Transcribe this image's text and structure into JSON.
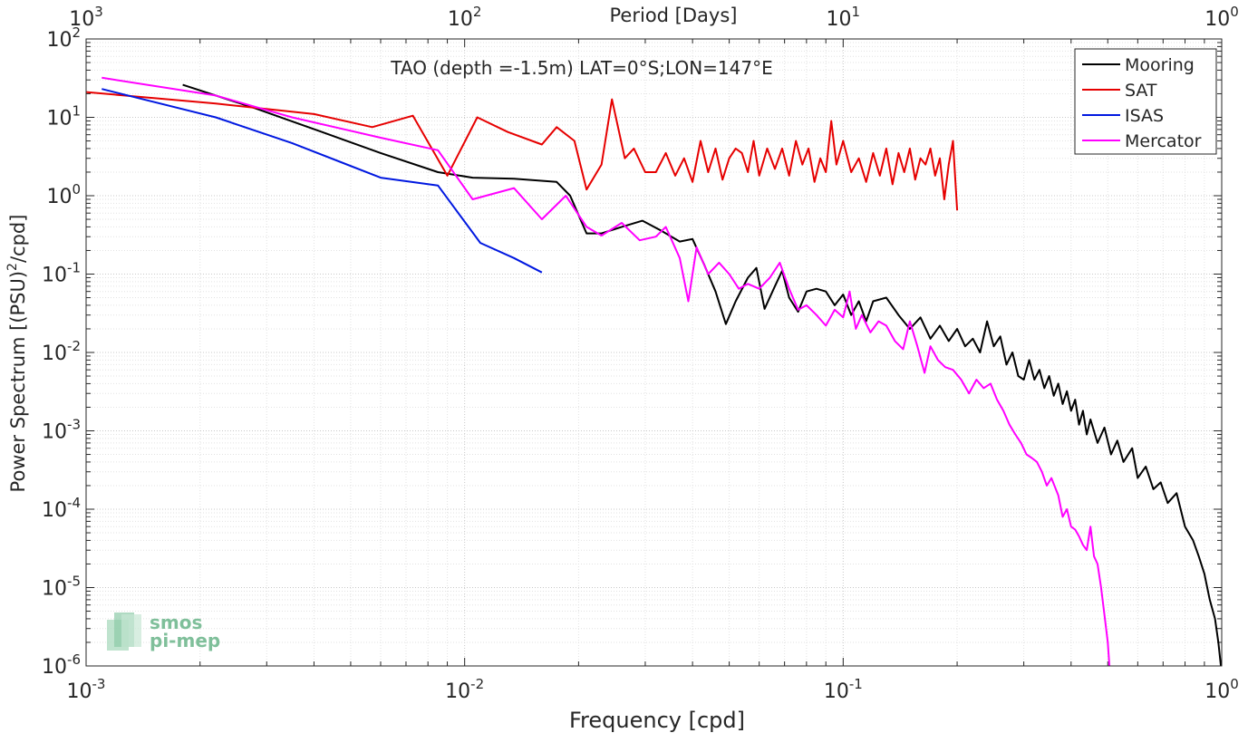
{
  "chart_data": {
    "type": "line",
    "title": "TAO (depth =-1.5m) LAT=0°S;LON=147°E",
    "xlabel": "Frequency [cpd]",
    "ylabel_main": "Power Spectrum [(PSU)",
    "ylabel_sup": "2",
    "ylabel_tail": "/cpd]",
    "top_xlabel": "Period [Days]",
    "xscale": "log",
    "yscale": "log",
    "xlim": [
      0.001,
      1
    ],
    "ylim": [
      1e-06,
      100
    ],
    "grid": true,
    "legend_position": "top-right",
    "x_ticks": [
      {
        "value": 0.001,
        "base": "10",
        "exp": "-3"
      },
      {
        "value": 0.01,
        "base": "10",
        "exp": "-2"
      },
      {
        "value": 0.1,
        "base": "10",
        "exp": "-1"
      },
      {
        "value": 1,
        "base": "10",
        "exp": "0"
      }
    ],
    "top_ticks": [
      {
        "period": 1000,
        "base": "10",
        "exp": "3"
      },
      {
        "period": 100,
        "base": "10",
        "exp": "2"
      },
      {
        "period": 10,
        "base": "10",
        "exp": "1"
      },
      {
        "period": 1,
        "base": "10",
        "exp": "0"
      }
    ],
    "y_ticks": [
      {
        "value": 100,
        "base": "10",
        "exp": "2"
      },
      {
        "value": 10,
        "base": "10",
        "exp": "1"
      },
      {
        "value": 1,
        "base": "10",
        "exp": "0"
      },
      {
        "value": 0.1,
        "base": "10",
        "exp": "-1"
      },
      {
        "value": 0.01,
        "base": "10",
        "exp": "-2"
      },
      {
        "value": 0.001,
        "base": "10",
        "exp": "-3"
      },
      {
        "value": 0.0001,
        "base": "10",
        "exp": "-4"
      },
      {
        "value": 1e-05,
        "base": "10",
        "exp": "-5"
      },
      {
        "value": 1e-06,
        "base": "10",
        "exp": "-6"
      }
    ],
    "logo": {
      "line1": "smos",
      "line2": "pi-mep",
      "color": "#7fbf9a"
    },
    "series": [
      {
        "name": "Mooring",
        "color": "#000000",
        "points": [
          [
            0.0018,
            26
          ],
          [
            0.0028,
            13
          ],
          [
            0.0042,
            6.5
          ],
          [
            0.006,
            3.5
          ],
          [
            0.0085,
            2.0
          ],
          [
            0.0105,
            1.7
          ],
          [
            0.0135,
            1.65
          ],
          [
            0.0175,
            1.5
          ],
          [
            0.019,
            1.0
          ],
          [
            0.021,
            0.33
          ],
          [
            0.023,
            0.33
          ],
          [
            0.026,
            0.4
          ],
          [
            0.0295,
            0.48
          ],
          [
            0.033,
            0.36
          ],
          [
            0.037,
            0.26
          ],
          [
            0.04,
            0.28
          ],
          [
            0.043,
            0.13
          ],
          [
            0.046,
            0.06
          ],
          [
            0.049,
            0.023
          ],
          [
            0.052,
            0.045
          ],
          [
            0.056,
            0.09
          ],
          [
            0.059,
            0.12
          ],
          [
            0.062,
            0.036
          ],
          [
            0.066,
            0.07
          ],
          [
            0.069,
            0.11
          ],
          [
            0.072,
            0.05
          ],
          [
            0.076,
            0.033
          ],
          [
            0.08,
            0.06
          ],
          [
            0.085,
            0.065
          ],
          [
            0.09,
            0.06
          ],
          [
            0.095,
            0.04
          ],
          [
            0.1,
            0.055
          ],
          [
            0.105,
            0.03
          ],
          [
            0.11,
            0.045
          ],
          [
            0.115,
            0.025
          ],
          [
            0.12,
            0.045
          ],
          [
            0.13,
            0.05
          ],
          [
            0.14,
            0.03
          ],
          [
            0.15,
            0.02
          ],
          [
            0.16,
            0.028
          ],
          [
            0.17,
            0.015
          ],
          [
            0.18,
            0.022
          ],
          [
            0.19,
            0.014
          ],
          [
            0.2,
            0.02
          ],
          [
            0.21,
            0.012
          ],
          [
            0.22,
            0.015
          ],
          [
            0.23,
            0.01
          ],
          [
            0.24,
            0.025
          ],
          [
            0.25,
            0.012
          ],
          [
            0.26,
            0.016
          ],
          [
            0.27,
            0.007
          ],
          [
            0.28,
            0.01
          ],
          [
            0.29,
            0.005
          ],
          [
            0.3,
            0.0045
          ],
          [
            0.31,
            0.008
          ],
          [
            0.32,
            0.0045
          ],
          [
            0.33,
            0.006
          ],
          [
            0.34,
            0.0035
          ],
          [
            0.35,
            0.005
          ],
          [
            0.36,
            0.0028
          ],
          [
            0.37,
            0.004
          ],
          [
            0.38,
            0.0022
          ],
          [
            0.39,
            0.0032
          ],
          [
            0.4,
            0.0018
          ],
          [
            0.41,
            0.0025
          ],
          [
            0.42,
            0.0012
          ],
          [
            0.43,
            0.0018
          ],
          [
            0.44,
            0.0009
          ],
          [
            0.45,
            0.0014
          ],
          [
            0.47,
            0.0007
          ],
          [
            0.49,
            0.0011
          ],
          [
            0.51,
            0.0005
          ],
          [
            0.53,
            0.00075
          ],
          [
            0.55,
            0.0004
          ],
          [
            0.58,
            0.0006
          ],
          [
            0.6,
            0.00025
          ],
          [
            0.63,
            0.00035
          ],
          [
            0.66,
            0.00018
          ],
          [
            0.69,
            0.00022
          ],
          [
            0.72,
            0.00012
          ],
          [
            0.76,
            0.00016
          ],
          [
            0.8,
            6e-05
          ],
          [
            0.84,
            4e-05
          ],
          [
            0.87,
            2.5e-05
          ],
          [
            0.9,
            1.5e-05
          ],
          [
            0.93,
            7e-06
          ],
          [
            0.96,
            4e-06
          ],
          [
            0.98,
            2e-06
          ],
          [
            0.995,
            1e-06
          ]
        ]
      },
      {
        "name": "SAT",
        "color": "#e60000",
        "points": [
          [
            0.001,
            21
          ],
          [
            0.0022,
            15
          ],
          [
            0.004,
            11
          ],
          [
            0.0057,
            7.5
          ],
          [
            0.0073,
            10.5
          ],
          [
            0.009,
            1.8
          ],
          [
            0.0108,
            10
          ],
          [
            0.013,
            6.5
          ],
          [
            0.016,
            4.5
          ],
          [
            0.0175,
            7.5
          ],
          [
            0.0195,
            5
          ],
          [
            0.021,
            1.2
          ],
          [
            0.023,
            2.5
          ],
          [
            0.0245,
            17
          ],
          [
            0.0265,
            3
          ],
          [
            0.028,
            4
          ],
          [
            0.03,
            2
          ],
          [
            0.032,
            2
          ],
          [
            0.034,
            3.5
          ],
          [
            0.036,
            1.8
          ],
          [
            0.038,
            3
          ],
          [
            0.04,
            1.5
          ],
          [
            0.042,
            5
          ],
          [
            0.044,
            2
          ],
          [
            0.046,
            4
          ],
          [
            0.048,
            1.6
          ],
          [
            0.05,
            3
          ],
          [
            0.052,
            4
          ],
          [
            0.054,
            3.5
          ],
          [
            0.056,
            2
          ],
          [
            0.058,
            5
          ],
          [
            0.06,
            1.8
          ],
          [
            0.063,
            4
          ],
          [
            0.066,
            2.2
          ],
          [
            0.069,
            4
          ],
          [
            0.072,
            1.8
          ],
          [
            0.075,
            5
          ],
          [
            0.078,
            2.5
          ],
          [
            0.081,
            4
          ],
          [
            0.084,
            1.5
          ],
          [
            0.087,
            3
          ],
          [
            0.09,
            2
          ],
          [
            0.093,
            9
          ],
          [
            0.096,
            2.5
          ],
          [
            0.1,
            5
          ],
          [
            0.105,
            2
          ],
          [
            0.11,
            3
          ],
          [
            0.115,
            1.5
          ],
          [
            0.12,
            3.5
          ],
          [
            0.125,
            1.8
          ],
          [
            0.13,
            4
          ],
          [
            0.135,
            1.4
          ],
          [
            0.14,
            3.5
          ],
          [
            0.145,
            2
          ],
          [
            0.15,
            4
          ],
          [
            0.155,
            1.6
          ],
          [
            0.16,
            3
          ],
          [
            0.165,
            2.5
          ],
          [
            0.17,
            4
          ],
          [
            0.175,
            1.8
          ],
          [
            0.18,
            3
          ],
          [
            0.185,
            0.9
          ],
          [
            0.19,
            2.5
          ],
          [
            0.195,
            5
          ],
          [
            0.198,
            1.5
          ],
          [
            0.2,
            0.65
          ]
        ]
      },
      {
        "name": "ISAS",
        "color": "#0018e0",
        "points": [
          [
            0.0011,
            23
          ],
          [
            0.0022,
            10
          ],
          [
            0.0035,
            4.7
          ],
          [
            0.006,
            1.7
          ],
          [
            0.0085,
            1.35
          ],
          [
            0.011,
            0.25
          ],
          [
            0.0135,
            0.16
          ],
          [
            0.016,
            0.105
          ]
        ]
      },
      {
        "name": "Mercator",
        "color": "#ff00ff",
        "points": [
          [
            0.0011,
            32
          ],
          [
            0.0022,
            19
          ],
          [
            0.0035,
            10
          ],
          [
            0.006,
            5.5
          ],
          [
            0.0085,
            3.8
          ],
          [
            0.0105,
            0.9
          ],
          [
            0.0135,
            1.25
          ],
          [
            0.016,
            0.5
          ],
          [
            0.0185,
            1.0
          ],
          [
            0.021,
            0.4
          ],
          [
            0.023,
            0.31
          ],
          [
            0.026,
            0.45
          ],
          [
            0.029,
            0.27
          ],
          [
            0.032,
            0.3
          ],
          [
            0.034,
            0.4
          ],
          [
            0.037,
            0.16
          ],
          [
            0.039,
            0.045
          ],
          [
            0.041,
            0.22
          ],
          [
            0.044,
            0.1
          ],
          [
            0.047,
            0.14
          ],
          [
            0.05,
            0.1
          ],
          [
            0.053,
            0.065
          ],
          [
            0.056,
            0.075
          ],
          [
            0.06,
            0.065
          ],
          [
            0.064,
            0.09
          ],
          [
            0.068,
            0.14
          ],
          [
            0.072,
            0.065
          ],
          [
            0.076,
            0.035
          ],
          [
            0.08,
            0.04
          ],
          [
            0.085,
            0.03
          ],
          [
            0.09,
            0.022
          ],
          [
            0.095,
            0.035
          ],
          [
            0.1,
            0.028
          ],
          [
            0.104,
            0.06
          ],
          [
            0.108,
            0.02
          ],
          [
            0.112,
            0.03
          ],
          [
            0.118,
            0.018
          ],
          [
            0.124,
            0.025
          ],
          [
            0.13,
            0.022
          ],
          [
            0.137,
            0.014
          ],
          [
            0.144,
            0.011
          ],
          [
            0.15,
            0.025
          ],
          [
            0.157,
            0.012
          ],
          [
            0.164,
            0.0055
          ],
          [
            0.17,
            0.012
          ],
          [
            0.178,
            0.008
          ],
          [
            0.186,
            0.0065
          ],
          [
            0.195,
            0.006
          ],
          [
            0.205,
            0.0045
          ],
          [
            0.215,
            0.003
          ],
          [
            0.225,
            0.0045
          ],
          [
            0.235,
            0.0035
          ],
          [
            0.245,
            0.004
          ],
          [
            0.255,
            0.0025
          ],
          [
            0.265,
            0.0018
          ],
          [
            0.275,
            0.0012
          ],
          [
            0.285,
            0.0009
          ],
          [
            0.295,
            0.0007
          ],
          [
            0.305,
            0.0005
          ],
          [
            0.315,
            0.00045
          ],
          [
            0.325,
            0.0004
          ],
          [
            0.335,
            0.0003
          ],
          [
            0.345,
            0.0002
          ],
          [
            0.355,
            0.00025
          ],
          [
            0.37,
            0.00015
          ],
          [
            0.38,
            8e-05
          ],
          [
            0.39,
            0.0001
          ],
          [
            0.4,
            6e-05
          ],
          [
            0.41,
            5.5e-05
          ],
          [
            0.42,
            4.5e-05
          ],
          [
            0.43,
            3.5e-05
          ],
          [
            0.44,
            3e-05
          ],
          [
            0.45,
            6e-05
          ],
          [
            0.46,
            2.5e-05
          ],
          [
            0.47,
            2e-05
          ],
          [
            0.48,
            1e-05
          ],
          [
            0.49,
            4.5e-06
          ],
          [
            0.5,
            2e-06
          ],
          [
            0.505,
            1e-06
          ]
        ]
      }
    ]
  }
}
